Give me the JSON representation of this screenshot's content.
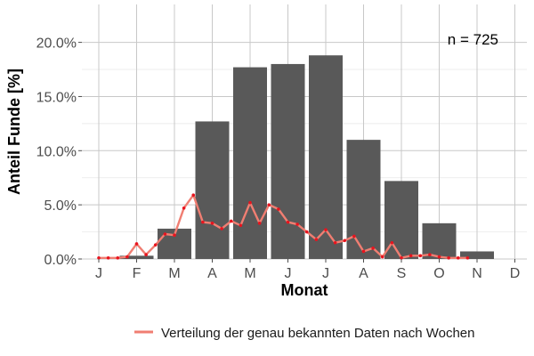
{
  "chart_data": {
    "type": "bar",
    "xlabel": "Monat",
    "ylabel": "Anteil Funde [%]",
    "categories": [
      "J",
      "F",
      "M",
      "A",
      "M",
      "J",
      "J",
      "A",
      "S",
      "O",
      "N",
      "D"
    ],
    "y_ticks": [
      "0.0%",
      "5.0%",
      "10.0%",
      "15.0%",
      "20.0%"
    ],
    "ylim": [
      0,
      23.5
    ],
    "annotation": "n = 725",
    "grid": true,
    "legend_position": "bottom",
    "series": [
      {
        "type": "bar",
        "color": "#595959",
        "values": [
          0,
          0.3,
          2.8,
          12.7,
          17.7,
          18.0,
          18.8,
          11.0,
          7.2,
          3.3,
          0.7,
          0
        ]
      },
      {
        "type": "line",
        "name": "Verteilung der genau bekannten Daten nach Wochen",
        "line_color": "#f07e72",
        "point_color": "#e8141e",
        "x": [
          1.0,
          1.25,
          1.5,
          1.75,
          2.0,
          2.25,
          2.5,
          2.75,
          3.0,
          3.25,
          3.5,
          3.75,
          4.0,
          4.25,
          4.5,
          4.75,
          5.0,
          5.25,
          5.5,
          5.75,
          6.0,
          6.25,
          6.5,
          6.75,
          7.0,
          7.25,
          7.5,
          7.75,
          8.0,
          8.25,
          8.5,
          8.75,
          9.0,
          9.25,
          9.5,
          9.75,
          10.0,
          10.25,
          10.5,
          10.75
        ],
        "y": [
          0.1,
          0.1,
          0.1,
          0.2,
          1.4,
          0.4,
          1.3,
          2.3,
          2.2,
          4.7,
          5.9,
          3.4,
          3.3,
          2.8,
          3.5,
          3.1,
          5.2,
          3.3,
          5.0,
          4.6,
          3.4,
          3.2,
          2.5,
          1.8,
          2.7,
          1.5,
          1.7,
          2.1,
          0.7,
          1.0,
          0.2,
          1.5,
          0.1,
          0.3,
          0.3,
          0.4,
          0.2,
          0.1,
          0.1,
          0.1
        ]
      }
    ]
  }
}
